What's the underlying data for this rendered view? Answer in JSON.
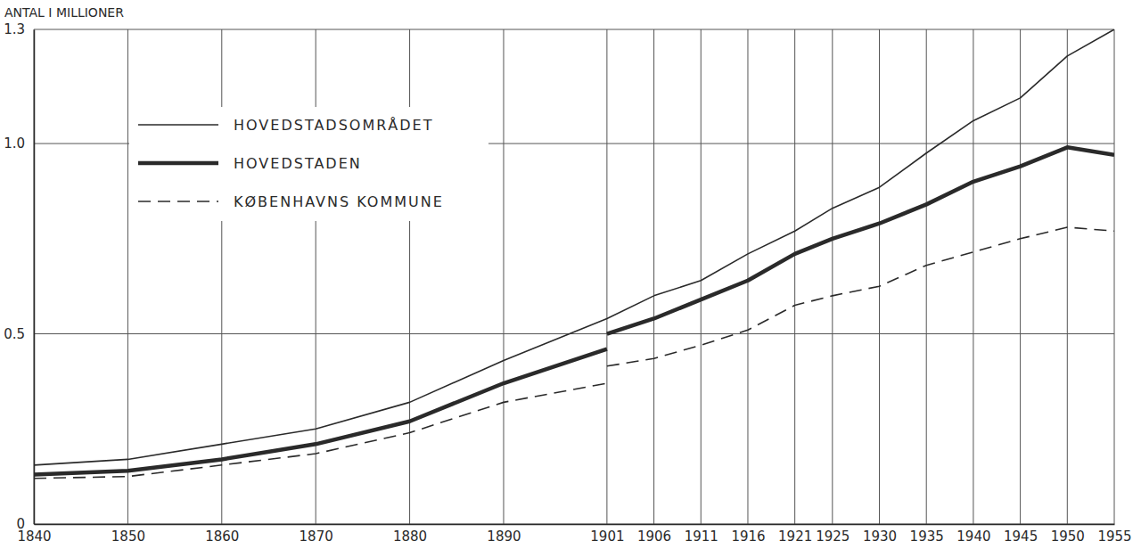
{
  "chart_data": {
    "type": "line",
    "y_label": "ANTAL I MILLIONER",
    "x": [
      1840,
      1850,
      1860,
      1870,
      1880,
      1890,
      1901,
      1901,
      1901,
      1906,
      1911,
      1916,
      1921,
      1925,
      1930,
      1935,
      1940,
      1945,
      1950,
      1955
    ],
    "series": [
      {
        "name": "HOVEDSTADSOMRÅDET",
        "color": "#2a2a2a",
        "line_style": "solid",
        "values": [
          0.155,
          0.17,
          0.21,
          0.25,
          0.32,
          0.43,
          0.54,
          null,
          0.54,
          0.6,
          0.64,
          0.71,
          0.77,
          0.83,
          0.885,
          0.975,
          1.06,
          1.12,
          1.23,
          1.3
        ]
      },
      {
        "name": "HOVEDSTADEN",
        "color": "#2a2a2a",
        "line_style": "bold",
        "values": [
          0.13,
          0.14,
          0.17,
          0.21,
          0.27,
          0.37,
          0.46,
          null,
          0.5,
          0.54,
          0.59,
          0.64,
          0.71,
          0.75,
          0.79,
          0.84,
          0.9,
          0.94,
          0.99,
          0.97
        ]
      },
      {
        "name": "KØBENHAVNS KOMMUNE",
        "color": "#2a2a2a",
        "line_style": "dashed",
        "values": [
          0.12,
          0.125,
          0.155,
          0.185,
          0.24,
          0.32,
          0.37,
          null,
          0.415,
          0.435,
          0.47,
          0.51,
          0.575,
          0.6,
          0.625,
          0.68,
          0.715,
          0.75,
          0.78,
          0.77
        ]
      }
    ],
    "xlim": [
      1840,
      1955
    ],
    "xticks": [
      1840,
      1850,
      1860,
      1870,
      1880,
      1890,
      1901,
      1906,
      1911,
      1916,
      1921,
      1925,
      1930,
      1935,
      1940,
      1945,
      1950,
      1955
    ],
    "ylim": [
      0,
      1.3
    ],
    "yticks": [
      0,
      0.5,
      {
        "value": 1,
        "label": "1.0"
      },
      1.3
    ],
    "grid": true,
    "legend": "upper left"
  }
}
